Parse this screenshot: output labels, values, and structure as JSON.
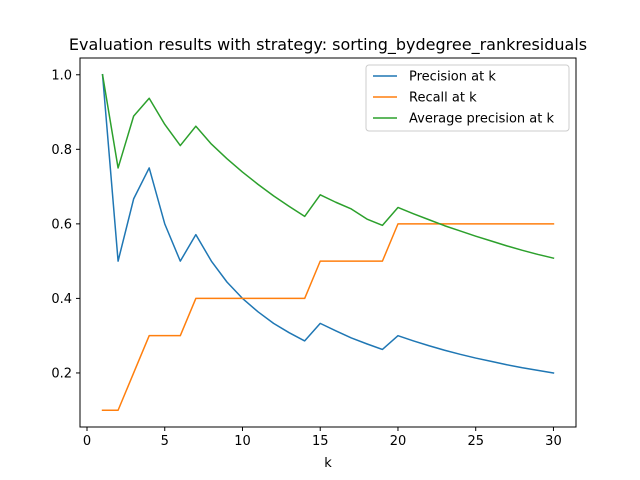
{
  "chart_data": {
    "type": "line",
    "title": "Evaluation results with strategy: sorting_bydegree_rankresiduals",
    "xlabel": "k",
    "ylabel": "",
    "xlim": [
      -0.45,
      31.45
    ],
    "ylim": [
      0.055,
      1.045
    ],
    "x_ticks": [
      0,
      5,
      10,
      15,
      20,
      25,
      30
    ],
    "y_ticks": [
      0.2,
      0.4,
      0.6,
      0.8,
      1.0
    ],
    "x_tick_labels": [
      "0",
      "5",
      "10",
      "15",
      "20",
      "25",
      "30"
    ],
    "y_tick_labels": [
      "0.2",
      "0.4",
      "0.6",
      "0.8",
      "1.0"
    ],
    "grid": false,
    "legend_position": "top-right",
    "x": [
      1,
      2,
      3,
      4,
      5,
      6,
      7,
      8,
      9,
      10,
      11,
      12,
      13,
      14,
      15,
      16,
      17,
      18,
      19,
      20,
      21,
      22,
      23,
      24,
      25,
      26,
      27,
      28,
      29,
      30
    ],
    "series": [
      {
        "name": "Precision at k",
        "color": "#1f77b4",
        "values": [
          1.0,
          0.5,
          0.667,
          0.75,
          0.6,
          0.5,
          0.571,
          0.5,
          0.444,
          0.4,
          0.364,
          0.333,
          0.308,
          0.286,
          0.333,
          0.313,
          0.294,
          0.278,
          0.263,
          0.3,
          0.286,
          0.273,
          0.261,
          0.25,
          0.24,
          0.231,
          0.222,
          0.214,
          0.207,
          0.2
        ]
      },
      {
        "name": "Recall at k",
        "color": "#ff7f0e",
        "values": [
          0.1,
          0.1,
          0.2,
          0.3,
          0.3,
          0.3,
          0.4,
          0.4,
          0.4,
          0.4,
          0.4,
          0.4,
          0.4,
          0.4,
          0.5,
          0.5,
          0.5,
          0.5,
          0.5,
          0.6,
          0.6,
          0.6,
          0.6,
          0.6,
          0.6,
          0.6,
          0.6,
          0.6,
          0.6,
          0.6
        ]
      },
      {
        "name": "Average precision at k",
        "color": "#2ca02c",
        "values": [
          1.0,
          0.75,
          0.889,
          0.937,
          0.867,
          0.81,
          0.862,
          0.814,
          0.775,
          0.739,
          0.706,
          0.675,
          0.647,
          0.62,
          0.678,
          0.658,
          0.64,
          0.613,
          0.596,
          0.644,
          0.627,
          0.611,
          0.595,
          0.581,
          0.567,
          0.554,
          0.541,
          0.529,
          0.518,
          0.508
        ]
      }
    ]
  }
}
